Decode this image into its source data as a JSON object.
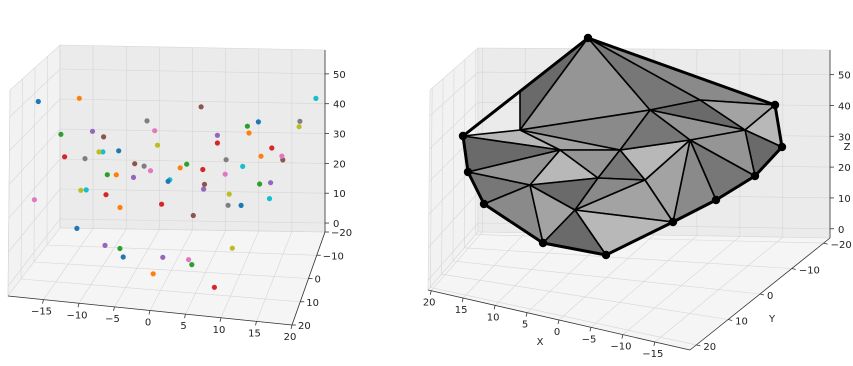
{
  "chart_data": [
    {
      "type": "scatter3d",
      "xlabel": "",
      "ylabel": "",
      "zlabel": "",
      "x_ticks": [
        "−15",
        "−10",
        "−5",
        "0",
        "5",
        "10",
        "15",
        "20"
      ],
      "y_ticks": [
        "−20",
        "−10",
        "0",
        "10",
        "20"
      ],
      "z_ticks": [
        "0",
        "10",
        "20",
        "30",
        "40",
        "50"
      ],
      "xlim": [
        -20,
        20
      ],
      "ylim": [
        -20,
        20
      ],
      "zlim": [
        -3,
        58
      ],
      "grid": true,
      "colors": [
        "#1f77b4",
        "#ff7f0e",
        "#2ca02c",
        "#d62728",
        "#9467bd",
        "#8c564b",
        "#e377c2",
        "#7f7f7f",
        "#bcbd22",
        "#17becf"
      ],
      "points": [
        {
          "x": -19,
          "y": 2,
          "z": 44
        },
        {
          "x": -12,
          "y": 8,
          "z": 47
        },
        {
          "x": -17,
          "y": -5,
          "z": 33
        },
        {
          "x": -15,
          "y": 3,
          "z": 29
        },
        {
          "x": -12,
          "y": -3,
          "z": 35
        },
        {
          "x": -9,
          "y": 5,
          "z": 36
        },
        {
          "x": -19,
          "y": 5,
          "z": 17
        },
        {
          "x": -14,
          "y": -8,
          "z": 25
        },
        {
          "x": -13,
          "y": 1,
          "z": 19
        },
        {
          "x": -11,
          "y": -6,
          "z": 28
        },
        {
          "x": -8,
          "y": -2,
          "z": 30
        },
        {
          "x": -7,
          "y": 6,
          "z": 26
        },
        {
          "x": -10,
          "y": -4,
          "z": 22
        },
        {
          "x": -9,
          "y": 3,
          "z": 19
        },
        {
          "x": -6,
          "y": -3,
          "z": 22
        },
        {
          "x": -5,
          "y": 2,
          "z": 28
        },
        {
          "x": -4,
          "y": -6,
          "z": 23
        },
        {
          "x": -3,
          "y": 6,
          "z": 29
        },
        {
          "x": -2,
          "y": 0,
          "z": 33
        },
        {
          "x": -1,
          "y": -5,
          "z": 21
        },
        {
          "x": 0,
          "y": 3,
          "z": 24
        },
        {
          "x": 1,
          "y": -2,
          "z": 26
        },
        {
          "x": 3,
          "y": 5,
          "z": 30
        },
        {
          "x": 4,
          "y": -4,
          "z": 25
        },
        {
          "x": 5,
          "y": 2,
          "z": 22
        },
        {
          "x": 6,
          "y": 8,
          "z": 26
        },
        {
          "x": 7,
          "y": -6,
          "z": 23
        },
        {
          "x": 8,
          "y": 0,
          "z": 30
        },
        {
          "x": 9,
          "y": 4,
          "z": 22
        },
        {
          "x": 10,
          "y": -3,
          "z": 27
        },
        {
          "x": 11,
          "y": 6,
          "z": 20
        },
        {
          "x": 12,
          "y": -8,
          "z": 28
        },
        {
          "x": 13,
          "y": 1,
          "z": 24
        },
        {
          "x": 14,
          "y": -5,
          "z": 32
        },
        {
          "x": 15,
          "y": 4,
          "z": 26
        },
        {
          "x": 16,
          "y": -2,
          "z": 30
        },
        {
          "x": 17,
          "y": 7,
          "z": 35
        },
        {
          "x": 18,
          "y": -6,
          "z": 40
        },
        {
          "x": 19,
          "y": 3,
          "z": 42
        },
        {
          "x": 20,
          "y": -9,
          "z": 46
        },
        {
          "x": 14,
          "y": 10,
          "z": 45
        },
        {
          "x": 12,
          "y": 5,
          "z": 40
        },
        {
          "x": 10,
          "y": -8,
          "z": 37
        },
        {
          "x": 8,
          "y": 9,
          "z": 38
        },
        {
          "x": 6,
          "y": -5,
          "z": 35
        },
        {
          "x": 3,
          "y": -9,
          "z": 42
        },
        {
          "x": -1,
          "y": 9,
          "z": 40
        },
        {
          "x": -5,
          "y": -9,
          "z": 37
        },
        {
          "x": -9,
          "y": 9,
          "z": 33
        },
        {
          "x": -14,
          "y": -9,
          "z": 15
        },
        {
          "x": -12,
          "y": 10,
          "z": 12
        },
        {
          "x": -9,
          "y": -9,
          "z": 10
        },
        {
          "x": -6,
          "y": 9,
          "z": 7
        },
        {
          "x": -3,
          "y": -10,
          "z": 11
        },
        {
          "x": 0,
          "y": 8,
          "z": 5
        },
        {
          "x": 2,
          "y": -8,
          "z": 9
        },
        {
          "x": 4,
          "y": 10,
          "z": 6
        },
        {
          "x": 7,
          "y": -9,
          "z": 12
        },
        {
          "x": 10,
          "y": 8,
          "z": 9
        },
        {
          "x": 13,
          "y": -10,
          "z": 14
        },
        {
          "x": -7,
          "y": 0,
          "z": 0
        },
        {
          "x": -2,
          "y": 4,
          "z": -2
        },
        {
          "x": 3,
          "y": 0,
          "z": -1
        },
        {
          "x": 7,
          "y": 5,
          "z": -4
        },
        {
          "x": -10,
          "y": -2,
          "z": 2
        }
      ]
    },
    {
      "type": "surface3d",
      "xlabel": "X",
      "ylabel": "Y",
      "zlabel": "Z",
      "x_ticks": [
        "20",
        "15",
        "10",
        "5",
        "0",
        "−5",
        "−10",
        "−15"
      ],
      "y_ticks": [
        "−20",
        "−10",
        "0",
        "10",
        "20"
      ],
      "z_ticks": [
        "0",
        "10",
        "20",
        "30",
        "40",
        "50"
      ],
      "grid": true,
      "face_colors": [
        "#777777",
        "#8a8a8a",
        "#a3a3a3",
        "#b8b8b8",
        "#6a6a6a",
        "#959595"
      ]
    }
  ]
}
